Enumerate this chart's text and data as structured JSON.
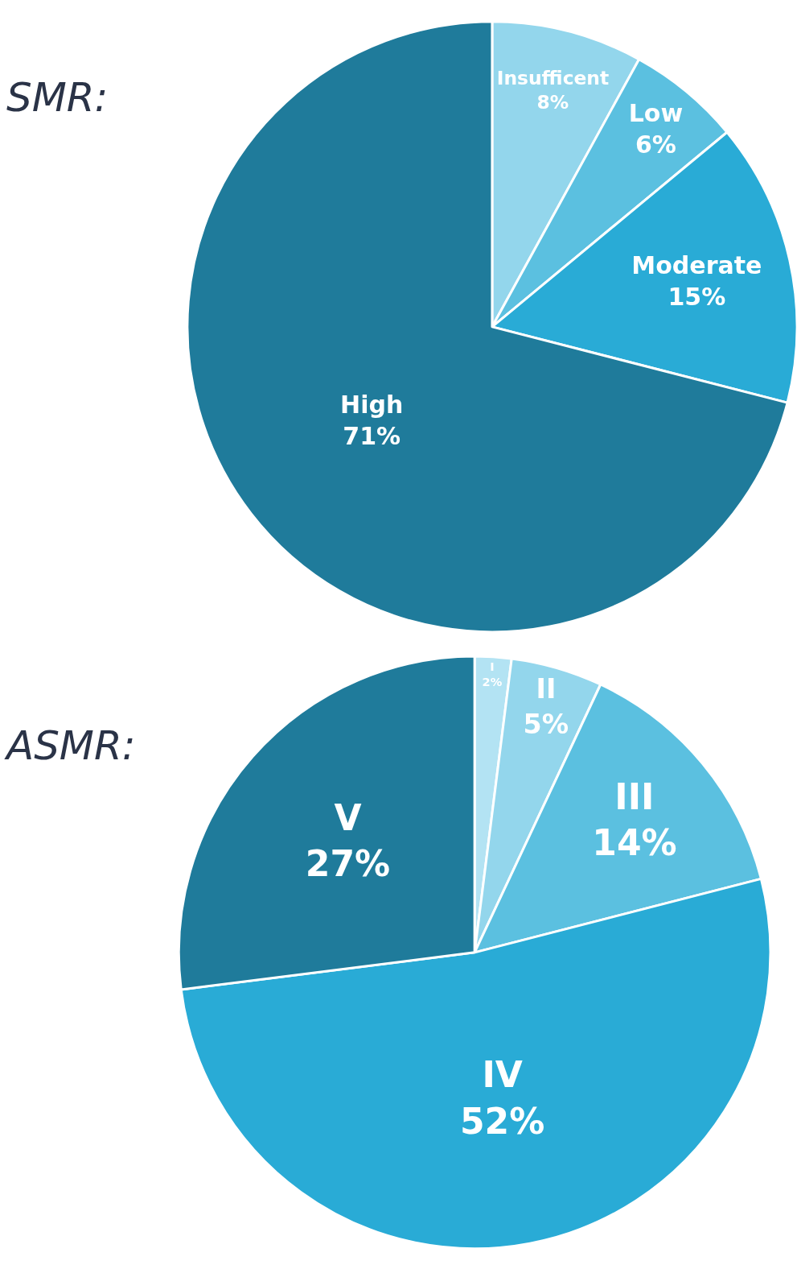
{
  "chart_data": [
    {
      "type": "pie",
      "title": "SMR:",
      "categories": [
        "Insufficent",
        "Low",
        "Moderate",
        "High"
      ],
      "values": [
        8,
        6,
        15,
        71
      ],
      "value_labels": [
        "8%",
        "6%",
        "15%",
        "71%"
      ],
      "colors": [
        "#93d6ec",
        "#5bc0e0",
        "#29abd6",
        "#1f7b9b"
      ],
      "legend": false
    },
    {
      "type": "pie",
      "title": "ASMR:",
      "categories": [
        "I",
        "II",
        "III",
        "IV",
        "V"
      ],
      "values": [
        2,
        5,
        14,
        52,
        27
      ],
      "value_labels": [
        "2%",
        "5%",
        "14%",
        "52%",
        "27%"
      ],
      "colors": [
        "#b3e3f3",
        "#93d6ec",
        "#5bc0e0",
        "#29abd6",
        "#1f7b9b"
      ],
      "legend": false
    }
  ]
}
